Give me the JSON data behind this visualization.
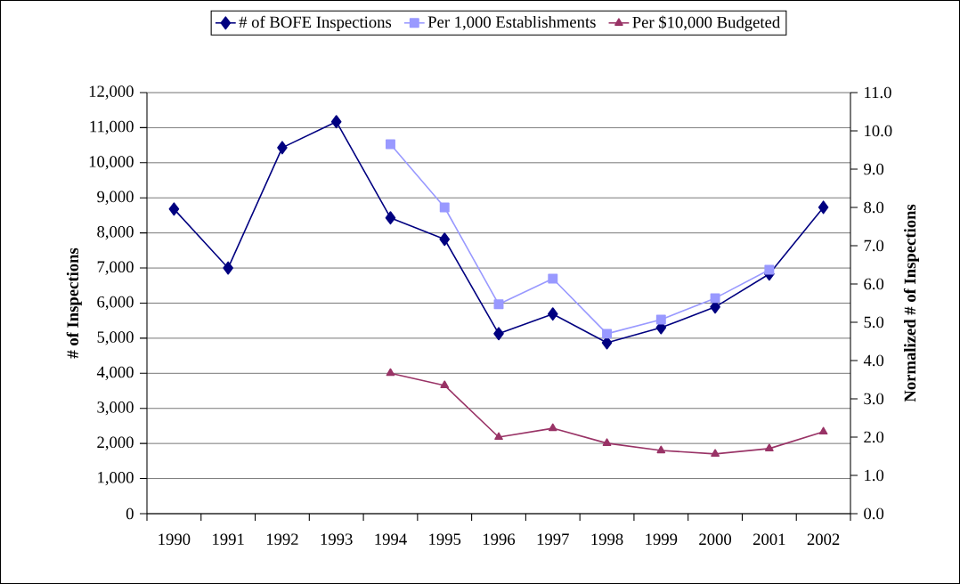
{
  "chart_data": {
    "type": "line",
    "ylabel": "# of Inspections",
    "y2label": "Normalized # of Inspections",
    "categories": [
      "1990",
      "1991",
      "1992",
      "1993",
      "1994",
      "1995",
      "1996",
      "1997",
      "1998",
      "1999",
      "2000",
      "2001",
      "2002"
    ],
    "series": [
      {
        "name": "# of BOFE Inspections",
        "color": "#000080",
        "marker": "diamond",
        "values": [
          8680,
          7000,
          10430,
          11170,
          8430,
          7820,
          5130,
          5690,
          4870,
          5300,
          5890,
          6830,
          8730
        ]
      },
      {
        "name": "Per 1,000 Establishments",
        "color": "#9999ff",
        "marker": "square",
        "axis": "y2",
        "values": [
          null,
          null,
          null,
          null,
          9.65,
          8.0,
          5.47,
          6.14,
          4.7,
          5.07,
          5.63,
          6.37,
          null
        ]
      },
      {
        "name": "Per $10,000 Budgeted",
        "color": "#993366",
        "marker": "triangle",
        "axis": "y2",
        "values": [
          null,
          null,
          null,
          null,
          3.67,
          3.35,
          2.0,
          2.23,
          1.84,
          1.65,
          1.56,
          1.7,
          2.14
        ]
      }
    ],
    "ylim": [
      0,
      12000
    ],
    "yticks": [
      {
        "value": 0,
        "label": "0"
      },
      {
        "value": 1000,
        "label": "1,000"
      },
      {
        "value": 2000,
        "label": "2,000"
      },
      {
        "value": 3000,
        "label": "3,000"
      },
      {
        "value": 4000,
        "label": "4,000"
      },
      {
        "value": 5000,
        "label": "5,000"
      },
      {
        "value": 6000,
        "label": "6,000"
      },
      {
        "value": 7000,
        "label": "7,000"
      },
      {
        "value": 8000,
        "label": "8,000"
      },
      {
        "value": 9000,
        "label": "9,000"
      },
      {
        "value": 10000,
        "label": "10,000"
      },
      {
        "value": 11000,
        "label": "11,000"
      },
      {
        "value": 12000,
        "label": "12,000"
      }
    ],
    "y2lim": [
      0,
      11
    ],
    "y2ticks": [
      {
        "value": 0,
        "label": "0.0"
      },
      {
        "value": 1,
        "label": "1.0"
      },
      {
        "value": 2,
        "label": "2.0"
      },
      {
        "value": 3,
        "label": "3.0"
      },
      {
        "value": 4,
        "label": "4.0"
      },
      {
        "value": 5,
        "label": "5.0"
      },
      {
        "value": 6,
        "label": "6.0"
      },
      {
        "value": 7,
        "label": "7.0"
      },
      {
        "value": 8,
        "label": "8.0"
      },
      {
        "value": 9,
        "label": "9.0"
      },
      {
        "value": 10,
        "label": "10.0"
      },
      {
        "value": 11,
        "label": "11.0"
      }
    ],
    "grid": "y",
    "legend": "top",
    "line_style": "solid"
  }
}
